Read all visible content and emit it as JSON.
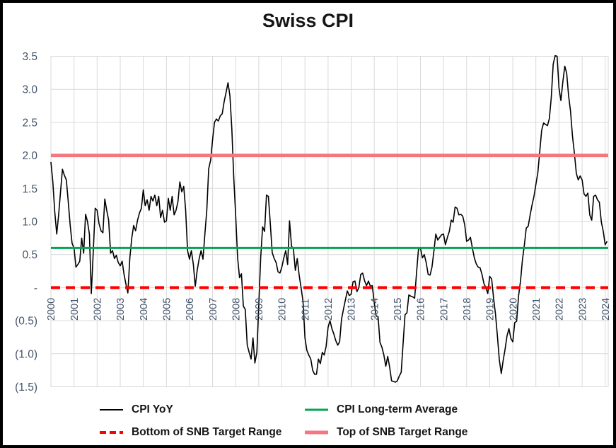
{
  "title": "Swiss CPI",
  "chart_data": {
    "type": "line",
    "title": "Swiss CPI",
    "grid": true,
    "y_axis": {
      "min": -1.5,
      "max": 3.5,
      "step": 0.5,
      "tick_labels": [
        "3.5",
        "3.0",
        "2.5",
        "2.0",
        "1.5",
        "1.0",
        "0.5",
        "-",
        "(0.5)",
        "(1.0)",
        "(1.5)"
      ]
    },
    "x_axis": {
      "tick_labels": [
        "2000",
        "2001",
        "2002",
        "2003",
        "2004",
        "2005",
        "2006",
        "2007",
        "2008",
        "2009",
        "2010",
        "2011",
        "2012",
        "2013",
        "2014",
        "2015",
        "2016",
        "2017",
        "2018",
        "2019",
        "2020",
        "2021",
        "2022",
        "2023",
        "2024"
      ],
      "months_per_tick": 12
    },
    "series": [
      {
        "name": "CPI YoY",
        "color": "#000000",
        "frequency": "monthly",
        "first_point": "Jan 2000",
        "values": [
          1.9,
          1.6,
          1.15,
          0.81,
          1.1,
          1.45,
          1.79,
          1.7,
          1.63,
          1.3,
          0.95,
          0.67,
          0.6,
          0.31,
          0.35,
          0.4,
          0.75,
          0.52,
          1.11,
          1.0,
          0.81,
          -0.09,
          0.55,
          1.2,
          1.17,
          0.97,
          0.86,
          0.83,
          1.34,
          1.17,
          1.02,
          0.52,
          0.56,
          0.44,
          0.49,
          0.38,
          0.33,
          0.4,
          0.2,
          0.05,
          -0.08,
          0.45,
          0.75,
          0.94,
          0.86,
          1.02,
          1.13,
          1.2,
          1.48,
          1.24,
          1.33,
          1.17,
          1.38,
          1.31,
          1.4,
          1.24,
          1.38,
          1.06,
          1.17,
          0.99,
          1.01,
          1.35,
          1.17,
          1.38,
          1.1,
          1.17,
          1.3,
          1.6,
          1.45,
          1.53,
          1.17,
          0.56,
          0.43,
          0.56,
          0.35,
          0.02,
          0.26,
          0.43,
          0.56,
          0.43,
          0.81,
          1.17,
          1.8,
          1.93,
          2.24,
          2.5,
          2.55,
          2.52,
          2.6,
          2.63,
          2.81,
          2.95,
          3.1,
          2.9,
          2.4,
          1.67,
          1.1,
          0.45,
          0.15,
          0.21,
          -0.28,
          -0.33,
          -0.87,
          -0.98,
          -1.08,
          -0.76,
          -1.14,
          -0.98,
          -0.26,
          0.45,
          0.92,
          0.85,
          1.4,
          1.38,
          0.97,
          0.53,
          0.44,
          0.38,
          0.24,
          0.22,
          0.31,
          0.45,
          0.56,
          0.35,
          1.01,
          0.63,
          0.58,
          0.26,
          0.44,
          0.19,
          -0.01,
          -0.21,
          -0.76,
          -0.95,
          -1.02,
          -1.08,
          -1.25,
          -1.31,
          -1.31,
          -1.08,
          -1.15,
          -0.98,
          -1.02,
          -0.89,
          -0.6,
          -0.5,
          -0.62,
          -0.7,
          -0.8,
          -0.87,
          -0.82,
          -0.48,
          -0.33,
          -0.19,
          -0.05,
          -0.12,
          -0.1,
          0.09,
          0.1,
          -0.06,
          0.0,
          0.2,
          0.22,
          0.1,
          0.03,
          0.1,
          0.02,
          0.03,
          -0.23,
          -0.43,
          -0.44,
          -0.83,
          -0.9,
          -1.02,
          -1.19,
          -1.04,
          -1.2,
          -1.41,
          -1.42,
          -1.43,
          -1.41,
          -1.34,
          -1.28,
          -0.84,
          -0.41,
          -0.38,
          -0.11,
          -0.13,
          -0.14,
          -0.16,
          0.23,
          0.58,
          0.6,
          0.45,
          0.5,
          0.38,
          0.2,
          0.19,
          0.31,
          0.55,
          0.81,
          0.72,
          0.76,
          0.8,
          0.81,
          0.65,
          0.76,
          0.85,
          1.02,
          0.99,
          1.22,
          1.2,
          1.1,
          1.11,
          1.08,
          0.95,
          0.7,
          0.72,
          0.76,
          0.6,
          0.45,
          0.36,
          0.31,
          0.3,
          0.2,
          0.06,
          0.0,
          -0.09,
          0.17,
          0.13,
          -0.16,
          -0.4,
          -0.73,
          -1.09,
          -1.3,
          -1.1,
          -0.93,
          -0.73,
          -0.62,
          -0.77,
          -0.82,
          -0.53,
          -0.51,
          -0.12,
          0.1,
          0.42,
          0.64,
          0.9,
          0.93,
          1.1,
          1.25,
          1.38,
          1.56,
          1.74,
          2.06,
          2.38,
          2.49,
          2.47,
          2.45,
          2.56,
          2.88,
          3.38,
          3.51,
          3.5,
          3.02,
          2.83,
          3.11,
          3.35,
          3.24,
          2.9,
          2.67,
          2.3,
          2.03,
          1.73,
          1.63,
          1.69,
          1.63,
          1.42,
          1.38,
          1.43,
          1.1,
          1.02,
          1.38,
          1.4,
          1.33,
          1.29,
          0.99,
          0.85,
          0.65,
          0.7
        ]
      }
    ],
    "reference_lines": [
      {
        "name": "CPI Long-term Average",
        "value": 0.6,
        "color": "#00A651",
        "dash": null,
        "width": 3
      },
      {
        "name": "Bottom of SNB Target Range",
        "value": 0.0,
        "color": "#FF0000",
        "dash": "13 8",
        "width": 4
      },
      {
        "name": "Top of SNB Target Range",
        "value": 2.0,
        "color": "#F4777F",
        "dash": null,
        "width": 5
      }
    ],
    "legend": [
      {
        "label": "CPI YoY",
        "color": "#000000",
        "width": 2,
        "dash": null
      },
      {
        "label": "CPI Long-term Average",
        "color": "#00A651",
        "width": 3,
        "dash": null
      },
      {
        "label": "Bottom of SNB Target Range",
        "color": "#FF0000",
        "width": 4,
        "dash": "9 5"
      },
      {
        "label": "Top of SNB Target Range",
        "color": "#F4777F",
        "width": 5,
        "dash": null
      }
    ],
    "colors": {
      "gridline": "#D9D9D9",
      "axis_text": "#44546A",
      "title_text": "#151515"
    }
  }
}
